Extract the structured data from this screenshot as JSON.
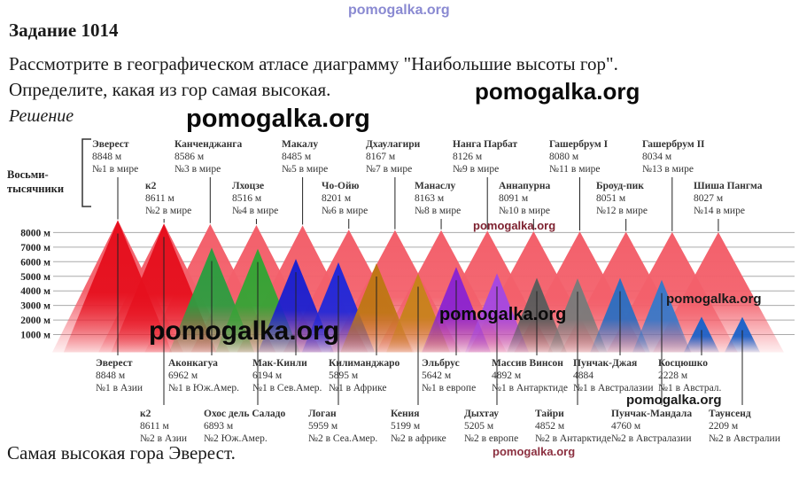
{
  "page": {
    "title": "Задание 1014",
    "task_line1": "Рассмотрите в географическом атласе диаграмму \"Наибольшие высоты гор\".",
    "task_line2": "Определите, какая из гор самая высокая.",
    "solution_label": "Решение",
    "answer": "Самая высокая гора Эверест."
  },
  "watermarks": {
    "top": "pomogalka.org",
    "line2": "pomogalka.org",
    "reshenie": "pomogalka.org",
    "chart_red": "pomogalka.org",
    "chart_right": "pomogalka.org",
    "chart_mid": "pomogalka.org",
    "chart_big": "pomogalka.org",
    "bottom_black": "pomogalka.org",
    "bottom_red": "pomogalka.org"
  },
  "chart_data": {
    "type": "bar",
    "variant": "triangle-mountain-diagram",
    "title": "Наибольшие высоты гор",
    "group_label_line1": "Восьми-",
    "group_label_line2": "тысячники",
    "y_axis": {
      "ticks": [
        "8000 м",
        "7000 м",
        "6000 м",
        "5000 м",
        "4000 м",
        "3000 м",
        "2000 м",
        "1000 м"
      ],
      "unit": "м",
      "ylim": [
        0,
        9000
      ],
      "grid": true
    },
    "back_row_color": "#f3606b",
    "world_peaks": [
      {
        "name": "Эверест",
        "height_m": 8848,
        "height_label": "8848 м",
        "rank_label": "№1 в мире"
      },
      {
        "name": "к2",
        "height_m": 8611,
        "height_label": "8611 м",
        "rank_label": "№2 в мире"
      },
      {
        "name": "Канченджанга",
        "height_m": 8586,
        "height_label": "8586 м",
        "rank_label": "№3 в мире"
      },
      {
        "name": "Лхоцзе",
        "height_m": 8516,
        "height_label": "8516 м",
        "rank_label": "№4 в мире"
      },
      {
        "name": "Макалу",
        "height_m": 8485,
        "height_label": "8485 м",
        "rank_label": "№5 в мире"
      },
      {
        "name": "Чо-Ойю",
        "height_m": 8201,
        "height_label": "8201 м",
        "rank_label": "№6 в мире"
      },
      {
        "name": "Дхаулагири",
        "height_m": 8167,
        "height_label": "8167 м",
        "rank_label": "№7 в мире"
      },
      {
        "name": "Манаслу",
        "height_m": 8163,
        "height_label": "8163 м",
        "rank_label": "№8 в мире"
      },
      {
        "name": "Нанга Парбат",
        "height_m": 8126,
        "height_label": "8126 м",
        "rank_label": "№9 в мире"
      },
      {
        "name": "Аннапурна",
        "height_m": 8091,
        "height_label": "8091 м",
        "rank_label": "№10 в мире"
      },
      {
        "name": "Гашербрум I",
        "height_m": 8080,
        "height_label": "8080 м",
        "rank_label": "№11 в мире"
      },
      {
        "name": "Броуд-пик",
        "height_m": 8051,
        "height_label": "8051 м",
        "rank_label": "№12 в мире"
      },
      {
        "name": "Гашербрум II",
        "height_m": 8034,
        "height_label": "8034 м",
        "rank_label": "№13 в мире"
      },
      {
        "name": "Шиша Пангма",
        "height_m": 8027,
        "height_label": "8027 м",
        "rank_label": "№14 в мире"
      }
    ],
    "continent_peaks": [
      {
        "name": "Эверест",
        "height_m": 8848,
        "height_label": "8848 м",
        "rank_label": "№1 в Азии",
        "color": "#e6101e"
      },
      {
        "name": "к2",
        "height_m": 8611,
        "height_label": "8611 м",
        "rank_label": "№2 в Азии",
        "color": "#e6101e"
      },
      {
        "name": "Аконкагуа",
        "height_m": 6962,
        "height_label": "6962 м",
        "rank_label": "№1 в Юж.Амер.",
        "color": "#2e9c40"
      },
      {
        "name": "Охос дель Саладо",
        "height_m": 6893,
        "height_label": "6893 м",
        "rank_label": "№2 Юж.Амер.",
        "color": "#35a435"
      },
      {
        "name": "Мак-Кинли",
        "height_m": 6194,
        "height_label": "6194 м",
        "rank_label": "№1 в Сев.Амер.",
        "color": "#1c20cf"
      },
      {
        "name": "Логан",
        "height_m": 5959,
        "height_label": "5959 м",
        "rank_label": "№2 в Сеа.Амер.",
        "color": "#2228d8"
      },
      {
        "name": "Килиманджаро",
        "height_m": 5895,
        "height_label": "5895 м",
        "rank_label": "№1 в Африке",
        "color": "#bf7615"
      },
      {
        "name": "Кения",
        "height_m": 5199,
        "height_label": "5199 м",
        "rank_label": "№2 в африке",
        "color": "#c8821c"
      },
      {
        "name": "Эльбрус",
        "height_m": 5642,
        "height_label": "5642 м",
        "rank_label": "№1 в европе",
        "color": "#8c24d0"
      },
      {
        "name": "Дыхтау",
        "height_m": 5205,
        "height_label": "5205 м",
        "rank_label": "№2 в европе",
        "color": "#a648e0"
      },
      {
        "name": "Массив Винсон",
        "height_m": 4892,
        "height_label": "4892 м",
        "rank_label": "№1 в Антарктиде",
        "color": "#5c5c5c"
      },
      {
        "name": "Тайри",
        "height_m": 4852,
        "height_label": "4852 м",
        "rank_label": "№2 в Антарктиде",
        "color": "#7a7a7a"
      },
      {
        "name": "Пунчак-Джая",
        "height_m": 4884,
        "height_label": "4884",
        "rank_label": "№1 в Австралазии",
        "color": "#2e6ec0"
      },
      {
        "name": "Пунчак-Мандала",
        "height_m": 4760,
        "height_label": "4760 м",
        "rank_label": "№2 в Австралазии",
        "color": "#3a78c8"
      },
      {
        "name": "Косцюшко",
        "height_m": 2228,
        "height_label": "2228 м",
        "rank_label": "№1 в Австрал.",
        "color": "#1e62c8"
      },
      {
        "name": "Таунсенд",
        "height_m": 2209,
        "height_label": "2209 м",
        "rank_label": "№2 в Австралии",
        "color": "#1e62c8"
      }
    ]
  }
}
